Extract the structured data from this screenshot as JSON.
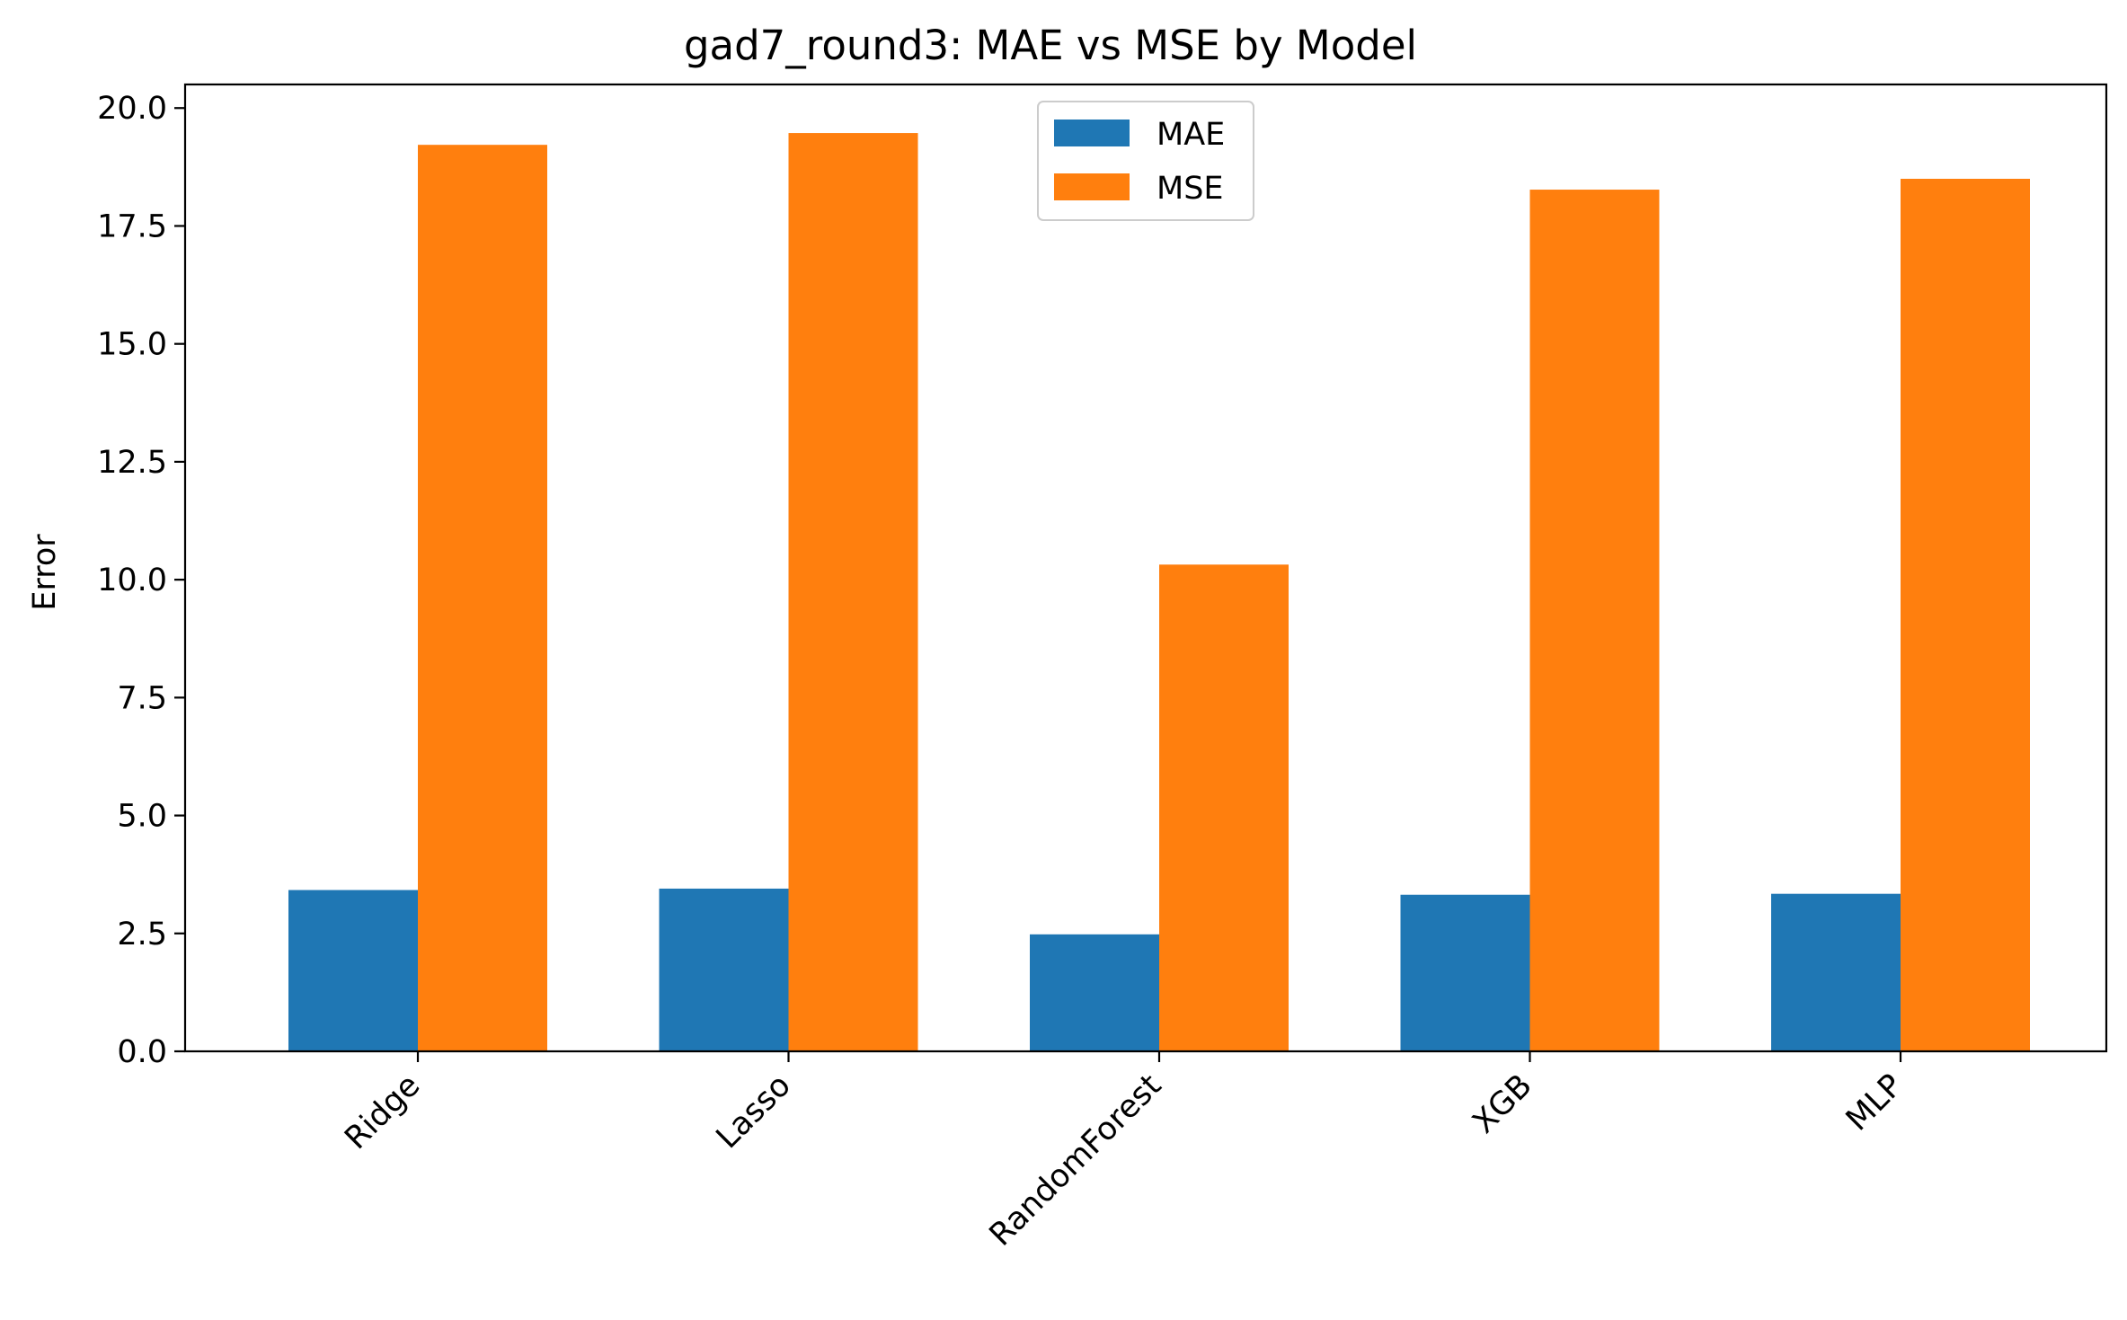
{
  "chart_data": {
    "type": "bar",
    "title": "gad7_round3: MAE vs MSE by Model",
    "xlabel": "",
    "ylabel": "Error",
    "categories": [
      "Ridge",
      "Lasso",
      "RandomForest",
      "XGB",
      "MLP"
    ],
    "series": [
      {
        "name": "MAE",
        "color": "#1f77b4",
        "values": [
          3.42,
          3.45,
          2.48,
          3.32,
          3.34
        ]
      },
      {
        "name": "MSE",
        "color": "#ff7f0e",
        "values": [
          19.22,
          19.47,
          10.32,
          18.27,
          18.5
        ]
      }
    ],
    "ylim": [
      0,
      20.5
    ],
    "yticks": [
      0.0,
      2.5,
      5.0,
      7.5,
      10.0,
      12.5,
      15.0,
      17.5,
      20.0
    ],
    "ytick_labels": [
      "0.0",
      "2.5",
      "5.0",
      "7.5",
      "10.0",
      "12.5",
      "15.0",
      "17.5",
      "20.0"
    ],
    "grid": false,
    "legend_position": "top-center"
  }
}
